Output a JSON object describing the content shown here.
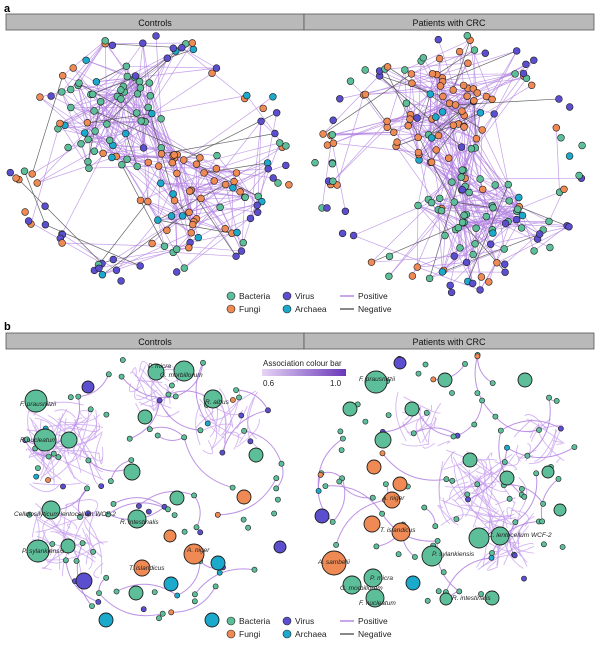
{
  "panels": [
    {
      "letter": "a",
      "headers": [
        "Controls",
        "Patients with CRC"
      ],
      "legend": {
        "nodes": [
          {
            "label": "Bacteria",
            "color": "#5dbf9a"
          },
          {
            "label": "Virus",
            "color": "#5b4fcf"
          },
          {
            "label": "Fungi",
            "color": "#f08a54"
          },
          {
            "label": "Archaea",
            "color": "#1ba9cc"
          }
        ],
        "edges": [
          {
            "label": "Positive",
            "color": "#b07fe0"
          },
          {
            "label": "Negative",
            "color": "#555555"
          }
        ]
      }
    },
    {
      "letter": "b",
      "headers": [
        "Controls",
        "Patients with CRC"
      ],
      "colorbar": {
        "title": "Association colour bar",
        "min_label": "0.6",
        "max_label": "1.0"
      },
      "labels_controls": [
        "P. micra",
        "G. morbillorum",
        "F. prausnitzii",
        "R. albus",
        "F. nucleatum",
        "Cellulosilyticum lentocellum WCF-2",
        "R. intestinalis",
        "P. sylankiensis",
        "A. niger",
        "T. islandicus"
      ],
      "labels_crc": [
        "F. prausnitzii",
        "A. niger",
        "T. islandicus",
        "C. lentocellum WCF-2",
        "P. sylankiensis",
        "A. sambelii",
        "P. micra",
        "G. morbillorum",
        "F. nucleatum",
        "R. intestinalis"
      ],
      "legend": {
        "nodes": [
          {
            "label": "Bacteria",
            "color": "#5dbf9a"
          },
          {
            "label": "Virus",
            "color": "#5b4fcf"
          },
          {
            "label": "Fungi",
            "color": "#f08a54"
          },
          {
            "label": "Archaea",
            "color": "#1ba9cc"
          }
        ],
        "edges": [
          {
            "label": "Positive",
            "color": "#b07fe0"
          },
          {
            "label": "Negative",
            "color": "#555555"
          }
        ]
      }
    }
  ]
}
